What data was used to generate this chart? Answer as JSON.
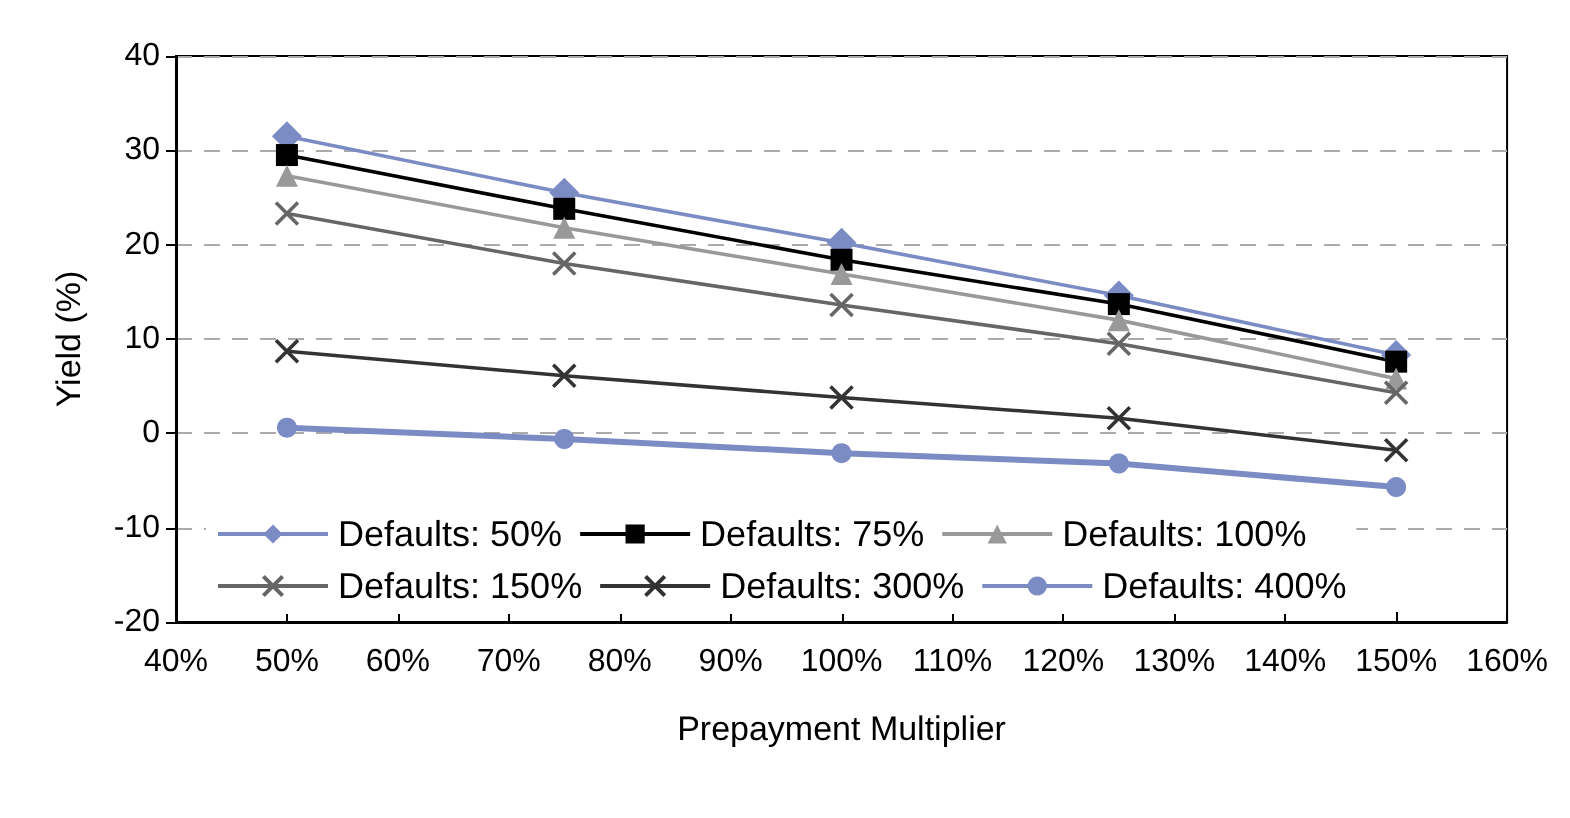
{
  "chart_data": {
    "type": "line",
    "xlabel": "Prepayment Multiplier",
    "ylabel": "Yield (%)",
    "x": [
      50,
      75,
      100,
      125,
      150
    ],
    "xlim": [
      40,
      160
    ],
    "xticks": [
      {
        "value": 40,
        "label": "40%"
      },
      {
        "value": 50,
        "label": "50%"
      },
      {
        "value": 60,
        "label": "60%"
      },
      {
        "value": 70,
        "label": "70%"
      },
      {
        "value": 80,
        "label": "80%"
      },
      {
        "value": 90,
        "label": "90%"
      },
      {
        "value": 100,
        "label": "100%"
      },
      {
        "value": 110,
        "label": "110%"
      },
      {
        "value": 120,
        "label": "120%"
      },
      {
        "value": 130,
        "label": "130%"
      },
      {
        "value": 140,
        "label": "140%"
      },
      {
        "value": 150,
        "label": "150%"
      },
      {
        "value": 160,
        "label": "160%"
      }
    ],
    "ylim": [
      -20,
      40
    ],
    "yticks": [
      -20,
      -10,
      0,
      10,
      20,
      30,
      40
    ],
    "grid": "y",
    "legend": "bottom",
    "series": [
      {
        "name": "Defaults: 50%",
        "color": "#7b8bc4",
        "marker": "diamond",
        "values": [
          31.5,
          25.5,
          20.2,
          14.6,
          8.3
        ]
      },
      {
        "name": "Defaults: 75%",
        "color": "#000000",
        "marker": "square",
        "values": [
          29.5,
          23.8,
          18.4,
          13.7,
          7.6
        ]
      },
      {
        "name": "Defaults: 100%",
        "color": "#999999",
        "marker": "triangle",
        "values": [
          27.3,
          21.8,
          16.9,
          12.0,
          5.8
        ]
      },
      {
        "name": "Defaults: 150%",
        "color": "#666666",
        "marker": "cross",
        "values": [
          23.3,
          18.0,
          13.6,
          9.5,
          4.3
        ]
      },
      {
        "name": "Defaults: 300%",
        "color": "#333333",
        "marker": "cross",
        "values": [
          8.7,
          6.1,
          3.8,
          1.6,
          -1.8
        ]
      },
      {
        "name": "Defaults: 400%",
        "color": "#7b8bc4",
        "marker": "circle",
        "values": [
          0.6,
          -0.6,
          -2.1,
          -3.2,
          -5.7
        ]
      }
    ]
  }
}
